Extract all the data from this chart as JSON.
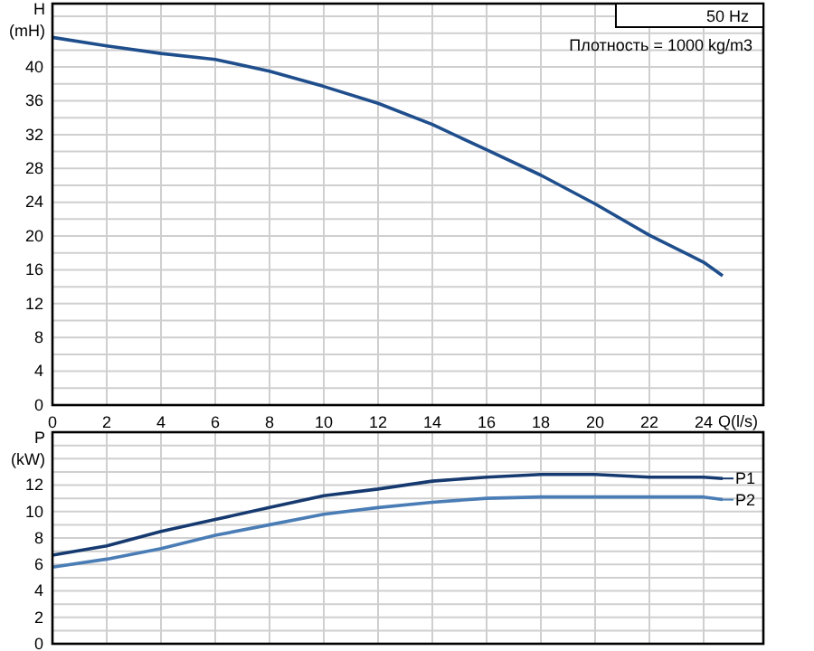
{
  "chart_data": [
    {
      "type": "line",
      "ylabel": "H (mH)",
      "xlabel": "Q(l/s)",
      "xlim": [
        0,
        26.2
      ],
      "ylim": [
        0,
        47.5
      ],
      "xticks": [
        0,
        2,
        4,
        6,
        8,
        10,
        12,
        14,
        16,
        18,
        20,
        22,
        24
      ],
      "yticks": [
        0,
        {
          "value": 2,
          "label": null
        },
        4,
        {
          "value": 6,
          "label": null
        },
        8,
        {
          "value": 10,
          "label": null
        },
        12,
        {
          "value": 14,
          "label": null
        },
        16,
        {
          "value": 18,
          "label": null
        },
        20,
        {
          "value": 22,
          "label": null
        },
        24,
        {
          "value": 26,
          "label": null
        },
        28,
        {
          "value": 30,
          "label": null
        },
        32,
        {
          "value": 34,
          "label": null
        },
        36,
        {
          "value": 38,
          "label": null
        },
        40,
        {
          "value": 42,
          "label": null
        },
        {
          "value": 44,
          "label": null
        },
        {
          "value": 46,
          "label": null
        }
      ],
      "grid": true,
      "marker": "none",
      "line_style": "solid",
      "annotations": [
        "50 Hz",
        "Плотность = 1000 kg/m3"
      ],
      "series": [
        {
          "color": "#1f4e8c",
          "x": [
            0,
            2,
            4,
            6,
            8,
            10,
            12,
            14,
            16,
            18,
            20,
            22,
            24,
            24.7
          ],
          "values": [
            43.5,
            42.5,
            41.6,
            40.9,
            39.5,
            37.7,
            35.7,
            33.2,
            30.2,
            27.2,
            23.8,
            20.1,
            16.9,
            15.3
          ]
        }
      ]
    },
    {
      "type": "line",
      "ylabel": "P (kW)",
      "xlim": [
        0,
        26.2
      ],
      "ylim": [
        0,
        16
      ],
      "tick_labels": "y",
      "xticks": [
        0,
        2,
        4,
        6,
        8,
        10,
        12,
        14,
        16,
        18,
        20,
        22,
        24
      ],
      "yticks": [
        0,
        {
          "value": 1,
          "label": null
        },
        2,
        {
          "value": 3,
          "label": null
        },
        4,
        {
          "value": 5,
          "label": null
        },
        6,
        {
          "value": 7,
          "label": null
        },
        8,
        {
          "value": 9,
          "label": null
        },
        10,
        {
          "value": 11,
          "label": null
        },
        12,
        {
          "value": 13,
          "label": null
        },
        {
          "value": 14,
          "label": null
        },
        {
          "value": 15,
          "label": null
        }
      ],
      "grid": true,
      "marker": "none",
      "line_style": "solid",
      "legend": "right",
      "series": [
        {
          "name": "P1",
          "color": "#163a70",
          "x": [
            0,
            2,
            4,
            6,
            8,
            10,
            12,
            14,
            16,
            18,
            20,
            22,
            24,
            24.7
          ],
          "values": [
            6.7,
            7.4,
            8.5,
            9.4,
            10.3,
            11.2,
            11.7,
            12.3,
            12.6,
            12.8,
            12.8,
            12.6,
            12.6,
            12.5
          ]
        },
        {
          "name": "P2",
          "color": "#4a7db5",
          "x": [
            0,
            2,
            4,
            6,
            8,
            10,
            12,
            14,
            16,
            18,
            20,
            22,
            24,
            24.7
          ],
          "values": [
            5.8,
            6.4,
            7.2,
            8.2,
            9.0,
            9.8,
            10.3,
            10.7,
            11.0,
            11.1,
            11.1,
            11.1,
            11.1,
            10.9
          ]
        }
      ]
    }
  ]
}
